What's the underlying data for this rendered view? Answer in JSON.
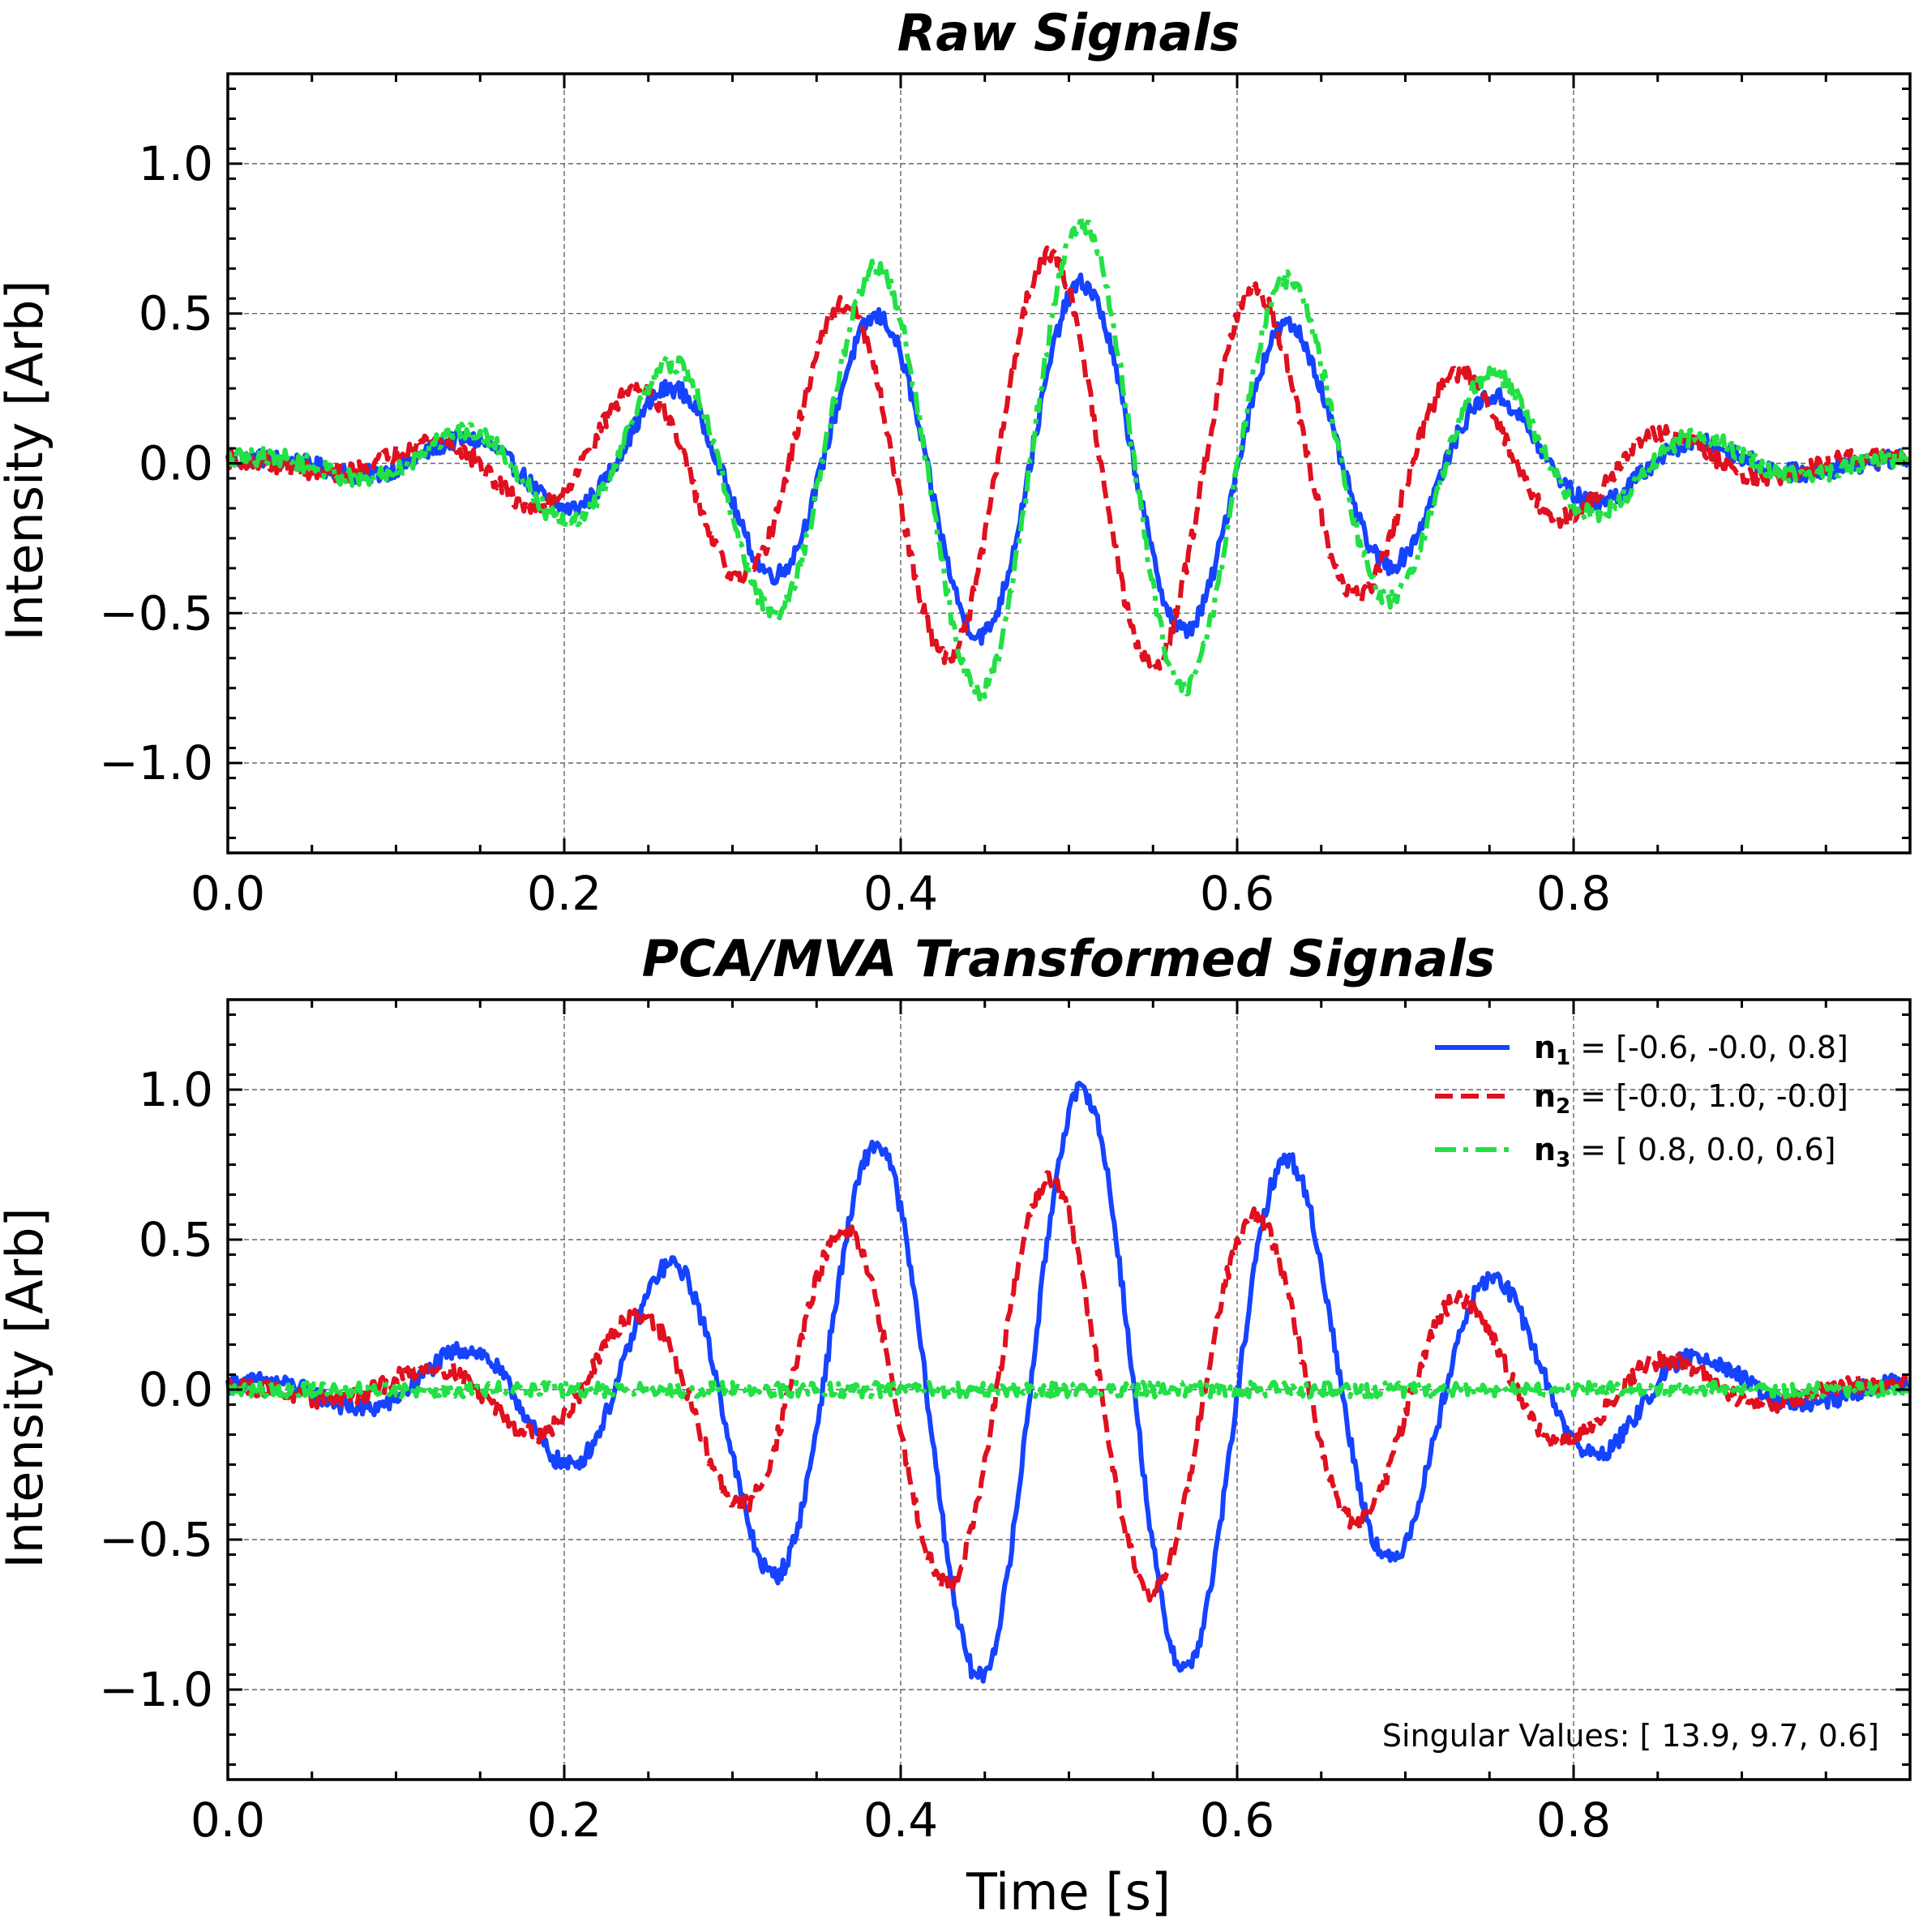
{
  "chart_data": [
    {
      "type": "line",
      "title": "Raw Signals",
      "xlabel": "",
      "ylabel": "Intensity [Arb]",
      "xlim": [
        0.0,
        1.0
      ],
      "ylim": [
        -1.3,
        1.3
      ],
      "xticks": [
        "0.0",
        "0.2",
        "0.4",
        "0.6",
        "0.8"
      ],
      "yticks": [
        "1.0",
        "0.5",
        "0.0",
        "−0.5",
        "−1.0"
      ],
      "grid": true,
      "envelope": {
        "center_s": 0.5,
        "sigma_s": 0.18,
        "frequency_hz": 8.1
      },
      "series": [
        {
          "style": "solid",
          "color": "#1543ff",
          "amplitude": 0.6,
          "phase_rad": 0.0,
          "noise": 0.03
        },
        {
          "style": "dashed",
          "color": "#e0101f",
          "amplitude": 0.7,
          "phase_rad": 1.0,
          "noise": 0.03
        },
        {
          "style": "dashdot",
          "color": "#22e045",
          "amplitude": 0.8,
          "phase_rad": 0.0,
          "noise": 0.03
        }
      ]
    },
    {
      "type": "line",
      "title": "PCA/MVA Transformed Signals",
      "xlabel": "Time [s]",
      "ylabel": "Intensity [Arb]",
      "xlim": [
        0.0,
        1.0
      ],
      "ylim": [
        -1.3,
        1.3
      ],
      "xticks": [
        "0.0",
        "0.2",
        "0.4",
        "0.6",
        "0.8"
      ],
      "yticks": [
        "1.0",
        "0.5",
        "0.0",
        "−0.5",
        "−1.0"
      ],
      "grid": true,
      "legend_position": "top-right",
      "annotation": "Singular Values: [ 13.9,  9.7,  0.6]",
      "envelope": {
        "center_s": 0.5,
        "sigma_s": 0.18,
        "frequency_hz": 8.1
      },
      "series": [
        {
          "name_main": "n",
          "name_sub": "1",
          "name_rest": " = [-0.6, -0.0,  0.8]",
          "style": "solid",
          "color": "#1543ff",
          "amplitude": 1.0,
          "phase_rad": 0.0,
          "noise": 0.03
        },
        {
          "name_main": "n",
          "name_sub": "2",
          "name_rest": " = [-0.0,  1.0, -0.0]",
          "style": "dashed",
          "color": "#e0101f",
          "amplitude": 0.7,
          "phase_rad": 1.0,
          "noise": 0.03
        },
        {
          "name_main": "n",
          "name_sub": "3",
          "name_rest": " = [ 0.8,  0.0,  0.6]",
          "style": "dashdot",
          "color": "#22e045",
          "amplitude": 0.0,
          "phase_rad": 0.0,
          "noise": 0.025
        }
      ]
    }
  ]
}
